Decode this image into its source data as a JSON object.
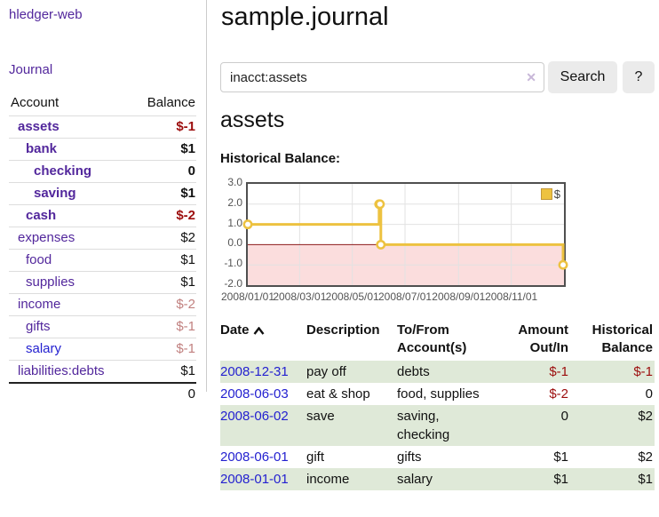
{
  "sidebar": {
    "app_title": "hledger-web",
    "journal_link": "Journal",
    "accounts": {
      "col_account": "Account",
      "col_balance": "Balance",
      "rows": [
        {
          "name": "assets",
          "level": 1,
          "selected": true,
          "balance": "$-1",
          "neg": "strong"
        },
        {
          "name": "bank",
          "level": 2,
          "selected": true,
          "balance": "$1",
          "neg": "none"
        },
        {
          "name": "checking",
          "level": 3,
          "selected": true,
          "balance": "0",
          "neg": "none"
        },
        {
          "name": "saving",
          "level": 3,
          "selected": true,
          "balance": "$1",
          "neg": "none"
        },
        {
          "name": "cash",
          "level": 2,
          "selected": true,
          "balance": "$-2",
          "neg": "strong"
        },
        {
          "name": "expenses",
          "level": 1,
          "selected": false,
          "balance": "$2",
          "neg": "none"
        },
        {
          "name": "food",
          "level": 2,
          "selected": false,
          "balance": "$1",
          "neg": "none"
        },
        {
          "name": "supplies",
          "level": 2,
          "selected": false,
          "balance": "$1",
          "neg": "none"
        },
        {
          "name": "income",
          "level": 1,
          "selected": false,
          "balance": "$-2",
          "neg": "soft"
        },
        {
          "name": "gifts",
          "level": 2,
          "selected": false,
          "balance": "$-1",
          "neg": "soft"
        },
        {
          "name": "salary",
          "level": 2,
          "selected": false,
          "balance": "$-1",
          "neg": "soft",
          "link_color": "blue"
        },
        {
          "name": "liabilities:debts",
          "level": 1,
          "selected": false,
          "balance": "$1",
          "neg": "none"
        }
      ],
      "total": "0"
    }
  },
  "main": {
    "title": "sample.journal",
    "search": {
      "value": "inacct:assets",
      "clear_icon": "✕",
      "search_button": "Search",
      "help_button": "?"
    },
    "account_heading": "assets",
    "section_label": "Historical Balance:",
    "register": {
      "headers": {
        "date": "Date",
        "description": "Description",
        "tofrom": "To/From Account(s)",
        "amount": "Amount Out/In",
        "balance": "Historical Balance"
      },
      "rows": [
        {
          "date": "2008-12-31",
          "description": "pay off",
          "accounts": "debts",
          "amount": "$-1",
          "balance": "$-1",
          "amount_neg": true,
          "balance_neg": true
        },
        {
          "date": "2008-06-03",
          "description": "eat & shop",
          "accounts": "food, supplies",
          "amount": "$-2",
          "balance": "0",
          "amount_neg": true,
          "balance_neg": false
        },
        {
          "date": "2008-06-02",
          "description": "save",
          "accounts": "saving, checking",
          "amount": "0",
          "balance": "$2",
          "amount_neg": false,
          "balance_neg": false
        },
        {
          "date": "2008-06-01",
          "description": "gift",
          "accounts": "gifts",
          "amount": "$1",
          "balance": "$2",
          "amount_neg": false,
          "balance_neg": false
        },
        {
          "date": "2008-01-01",
          "description": "income",
          "accounts": "salary",
          "amount": "$1",
          "balance": "$1",
          "amount_neg": false,
          "balance_neg": false
        }
      ]
    }
  },
  "chart_data": {
    "type": "line",
    "title": "Historical Balance:",
    "series": [
      {
        "name": "$",
        "color": "#edc240",
        "step": true,
        "points": [
          [
            "2008-01-01",
            1
          ],
          [
            "2008-06-01",
            2
          ],
          [
            "2008-06-02",
            2
          ],
          [
            "2008-06-03",
            0
          ],
          [
            "2008-12-31",
            -1
          ]
        ]
      }
    ],
    "ylim": [
      -2,
      3
    ],
    "yticks": [
      "3.0",
      "2.0",
      "1.0",
      "0.0",
      "-1.0",
      "-2.0"
    ],
    "xticks": [
      "2008/01/01",
      "2008/03/01",
      "2008/05/01",
      "2008/07/01",
      "2008/09/01",
      "2008/11/01"
    ],
    "xrange": [
      "2008-01-01",
      "2009-01-01"
    ],
    "grid": true,
    "legend": {
      "label": "$",
      "position": "top-right"
    },
    "colors": {
      "negative_fill": "#fbdddd",
      "zero_line": "#8b1a1a",
      "grid": "#e2e2e2"
    }
  },
  "colors": {
    "link_purple": "#52279c",
    "link_blue": "#2421d0",
    "negative_strong": "#9c0d0d",
    "negative_soft": "#c1807f",
    "row_green": "#dfe9d8",
    "series_gold": "#edc240"
  }
}
